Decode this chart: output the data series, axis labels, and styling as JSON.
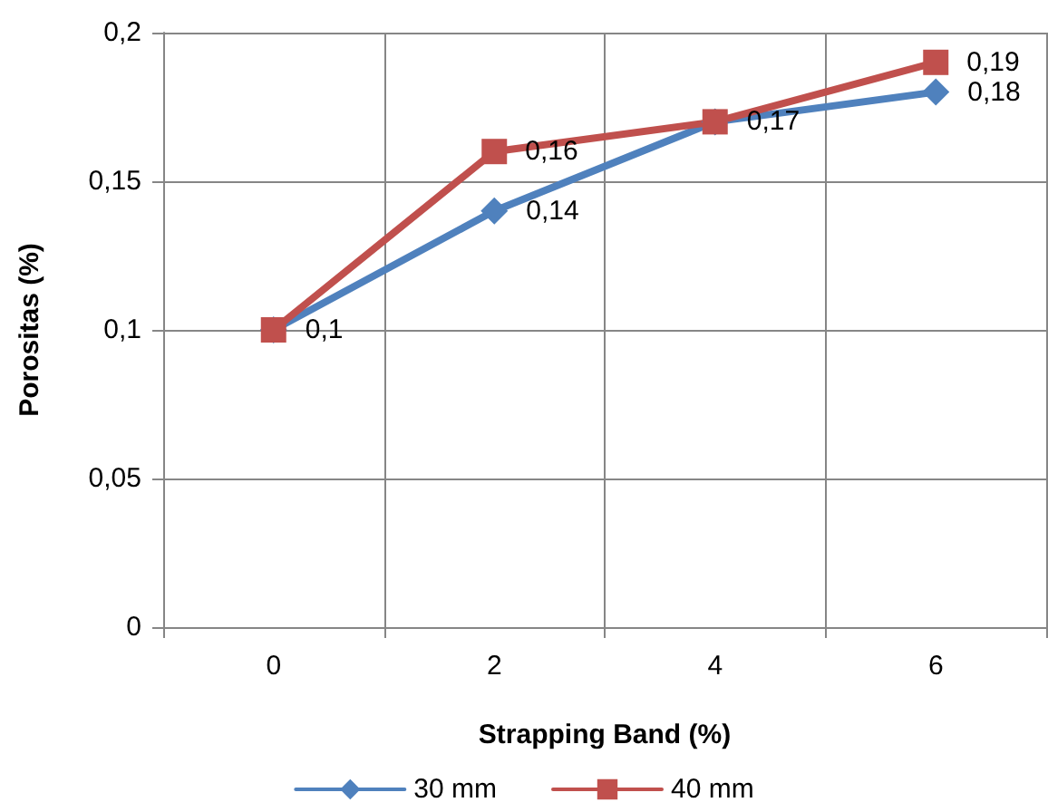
{
  "chart_data": {
    "type": "line",
    "xlabel": "Strapping Band (%)",
    "ylabel": "Porositas (%)",
    "categories": [
      "0",
      "2",
      "4",
      "6"
    ],
    "series": [
      {
        "name": "30 mm",
        "color": "#4f81bd",
        "marker": "diamond",
        "values": [
          0.1,
          0.14,
          0.17,
          0.18
        ],
        "value_labels": [
          "0,1",
          "0,14",
          "0,17",
          "0,18"
        ]
      },
      {
        "name": "40 mm",
        "color": "#c0504d",
        "marker": "square",
        "values": [
          0.1,
          0.16,
          0.17,
          0.19
        ],
        "value_labels": [
          null,
          "0,16",
          null,
          "0,19"
        ]
      }
    ],
    "ylim": [
      0,
      0.2
    ],
    "yticks": [
      0,
      {
        "value": 0.05,
        "label": "0,05"
      },
      {
        "value": 0.1,
        "label": "0,1"
      },
      {
        "value": 0.15,
        "label": "0,15"
      },
      {
        "value": 0.2,
        "label": "0,2"
      }
    ],
    "grid": true,
    "legend": "bottom",
    "line_style": "solid"
  }
}
